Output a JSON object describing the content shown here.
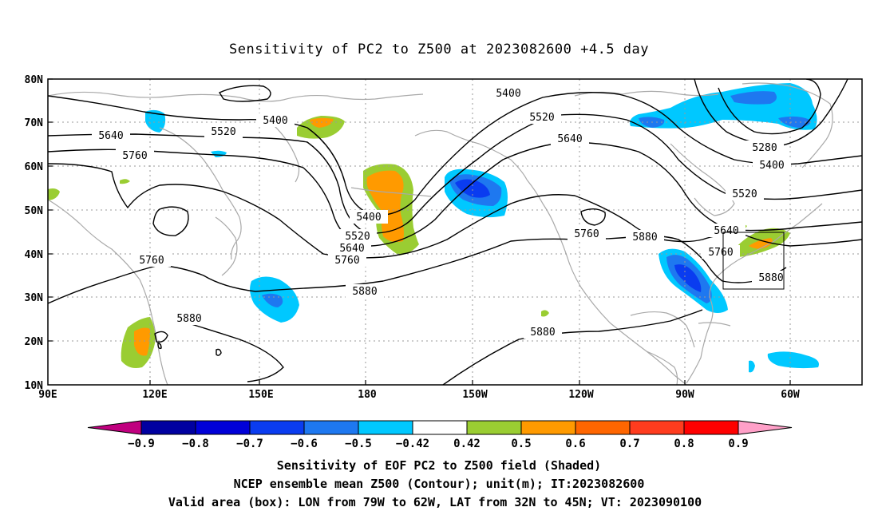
{
  "title": "Sensitivity of PC2 to Z500 at 2023082600 +4.5 day",
  "lat_labels": [
    "80N",
    "70N",
    "60N",
    "50N",
    "40N",
    "30N",
    "20N",
    "10N"
  ],
  "lon_labels": [
    "90E",
    "120E",
    "150E",
    "180",
    "150W",
    "120W",
    "90W",
    "60W"
  ],
  "contour_labels": [
    "5400",
    "5520",
    "5640",
    "5760",
    "5880",
    "5280"
  ],
  "colorbar": {
    "colors": [
      "#c0007f",
      "#0000a0",
      "#0000d8",
      "#0a3cf0",
      "#1e78f0",
      "#00c8ff",
      "#ffffff",
      "#9acd32",
      "#ff9a00",
      "#ff6600",
      "#ff3c1e",
      "#ff0000",
      "#ffa0c8"
    ],
    "tick_labels": [
      "−0.9",
      "−0.8",
      "−0.7",
      "−0.6",
      "−0.5",
      "−0.42",
      "0.42",
      "0.5",
      "0.6",
      "0.7",
      "0.8",
      "0.9"
    ]
  },
  "footer": {
    "line1": "Sensitivity of EOF PC2 to Z500 field (Shaded)",
    "line2": "NCEP ensemble mean Z500 (Contour); unit(m); IT:2023082600",
    "line3": "Valid area (box): LON from 79W to 62W, LAT from 32N to 45N; VT: 2023090100"
  },
  "valid_box": {
    "lon_min": -79,
    "lon_max": -62,
    "lat_min": 32,
    "lat_max": 45
  }
}
